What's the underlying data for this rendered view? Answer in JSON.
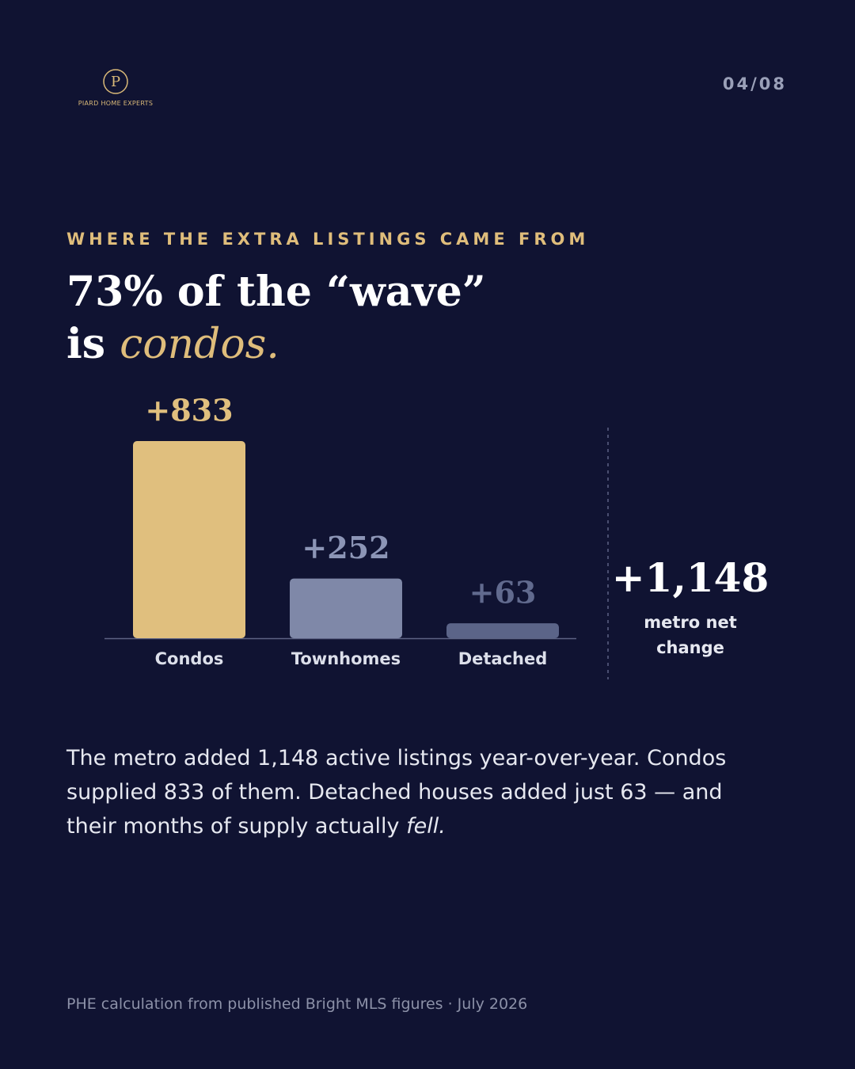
{
  "header": {
    "brand": "PIARD HOME EXPERTS",
    "logo_letter": "P",
    "page": "04/08"
  },
  "eyebrow": "WHERE THE EXTRA LISTINGS CAME FROM",
  "headline": {
    "line1": "73% of the “wave”",
    "line2": "is",
    "highlight": "condos."
  },
  "chart_data": {
    "type": "bar",
    "categories": [
      "Condos",
      "Townhomes",
      "Detached"
    ],
    "values": [
      833,
      252,
      63
    ],
    "value_labels": [
      "+833",
      "+252",
      "+63"
    ],
    "colors": [
      "#e0bf7e",
      "#7f88a8",
      "#5b6488"
    ]
  },
  "net_change": {
    "label": "+1,148",
    "caption": "metro net change"
  },
  "body": {
    "text": "The metro added 1,148 active listings year-over-year. Condos supplied 833 of them. Detached houses added just 63 — and their months of supply actually",
    "emphasis": "fell."
  },
  "footer": "PHE calculation from published Bright MLS figures · July 2026"
}
